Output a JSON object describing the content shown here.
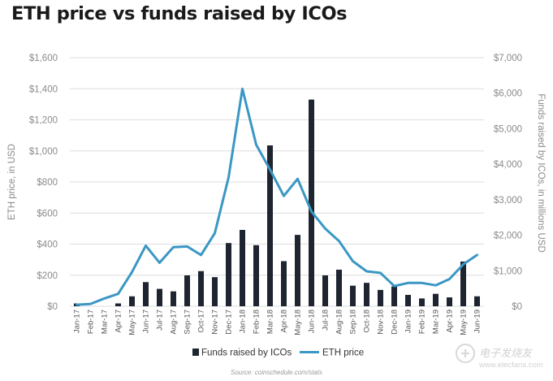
{
  "title": "ETH price vs funds raised by ICOs",
  "source": "Source: coinschedule.com/stats",
  "watermark": {
    "cn": "电子发烧友",
    "url": "www.elecfans.com"
  },
  "chart_data": {
    "type": "bar",
    "title": "ETH price vs funds raised by ICOs",
    "ylabel": "ETH price, in USD",
    "y2label": "Funds raised by ICOs, in millions USD",
    "ylim": [
      0,
      1600
    ],
    "y2lim": [
      0,
      7000
    ],
    "yticks": [
      "$0",
      "$200",
      "$400",
      "$600",
      "$800",
      "$1,000",
      "$1,200",
      "$1,400",
      "$1,600"
    ],
    "y2ticks": [
      "$0",
      "$1,000",
      "$2,000",
      "$3,000",
      "$4,000",
      "$5,000",
      "$6,000",
      "$7,000"
    ],
    "categories": [
      "Jan-17",
      "Feb-17",
      "Mar-17",
      "Apr-17",
      "May-17",
      "Jun-17",
      "Jul-17",
      "Aug-17",
      "Sep-17",
      "Oct-17",
      "Nov-17",
      "Dec-17",
      "Jan-18",
      "Feb-18",
      "Mar-18",
      "Apr-18",
      "May-18",
      "Jun-18",
      "Jul-18",
      "Aug-18",
      "Sep-18",
      "Oct-18",
      "Nov-18",
      "Dec-18",
      "Jan-19",
      "Feb-19",
      "Mar-19",
      "Apr-19",
      "May-19",
      "Jun-19"
    ],
    "grid": true,
    "legend_position": "bottom",
    "series": [
      {
        "name": "Funds raised by ICOs",
        "type": "bar",
        "axis": "right",
        "color": "#1e2530",
        "values": [
          80,
          0,
          0,
          80,
          280,
          680,
          490,
          420,
          870,
          990,
          820,
          1780,
          2150,
          1720,
          4530,
          1270,
          2010,
          5820,
          870,
          1030,
          580,
          660,
          460,
          560,
          320,
          220,
          350,
          250,
          1260,
          280
        ]
      },
      {
        "name": "ETH price",
        "type": "line",
        "axis": "left",
        "color": "#3a97c4",
        "values": [
          10,
          15,
          50,
          80,
          220,
          390,
          280,
          380,
          385,
          330,
          470,
          830,
          1400,
          1040,
          880,
          710,
          820,
          610,
          500,
          420,
          290,
          225,
          215,
          130,
          150,
          150,
          135,
          175,
          270,
          330
        ]
      }
    ]
  },
  "colors": {
    "bar": "#1e2530",
    "line": "#3a97c4",
    "grid": "#dedede",
    "axis_text": "#8a8a8a",
    "title": "#1a1a1a"
  }
}
